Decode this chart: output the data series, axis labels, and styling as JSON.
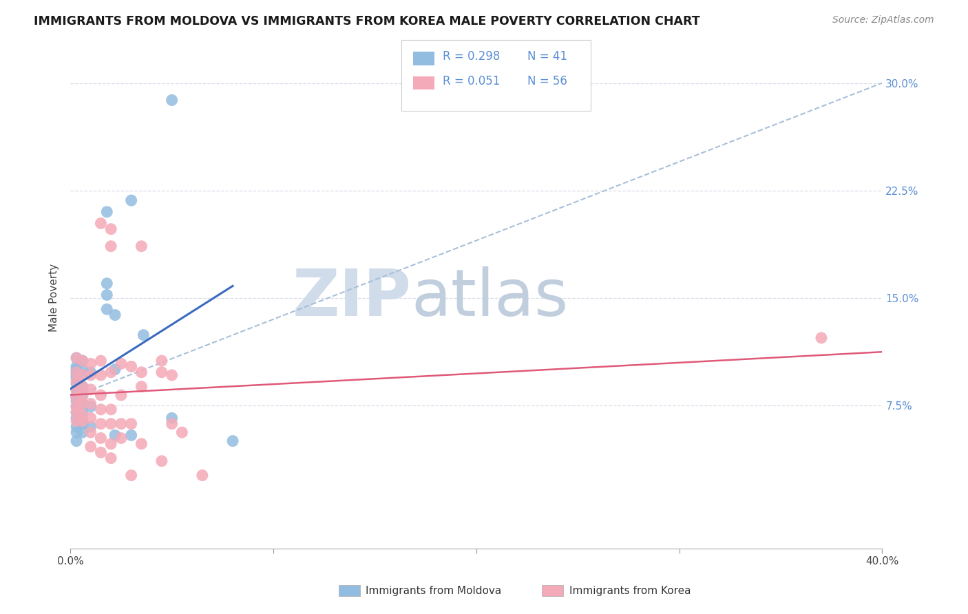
{
  "title": "IMMIGRANTS FROM MOLDOVA VS IMMIGRANTS FROM KOREA MALE POVERTY CORRELATION CHART",
  "source": "Source: ZipAtlas.com",
  "ylabel": "Male Poverty",
  "yticks": [
    "7.5%",
    "15.0%",
    "22.5%",
    "30.0%"
  ],
  "ytick_vals": [
    0.075,
    0.15,
    0.225,
    0.3
  ],
  "xlim": [
    0.0,
    0.4
  ],
  "ylim": [
    -0.025,
    0.325
  ],
  "legend_r1": "0.298",
  "legend_n1": "41",
  "legend_r2": "0.051",
  "legend_n2": "56",
  "color_moldova": "#92bce0",
  "color_korea": "#f4aab8",
  "trendline_color_moldova": "#3a6bbf",
  "trendline_color_korea": "#e05878",
  "diagonal_color": "#a8c0d8",
  "watermark_zip_color": "#d0dcea",
  "watermark_atlas_color": "#c0cede",
  "moldova_scatter": [
    [
      0.003,
      0.108
    ],
    [
      0.003,
      0.102
    ],
    [
      0.003,
      0.1
    ],
    [
      0.003,
      0.098
    ],
    [
      0.003,
      0.096
    ],
    [
      0.003,
      0.094
    ],
    [
      0.003,
      0.09
    ],
    [
      0.003,
      0.086
    ],
    [
      0.003,
      0.082
    ],
    [
      0.003,
      0.078
    ],
    [
      0.003,
      0.074
    ],
    [
      0.003,
      0.07
    ],
    [
      0.003,
      0.066
    ],
    [
      0.003,
      0.06
    ],
    [
      0.003,
      0.056
    ],
    [
      0.003,
      0.05
    ],
    [
      0.006,
      0.106
    ],
    [
      0.006,
      0.1
    ],
    [
      0.006,
      0.096
    ],
    [
      0.006,
      0.088
    ],
    [
      0.006,
      0.082
    ],
    [
      0.006,
      0.076
    ],
    [
      0.006,
      0.07
    ],
    [
      0.006,
      0.062
    ],
    [
      0.006,
      0.056
    ],
    [
      0.01,
      0.098
    ],
    [
      0.01,
      0.074
    ],
    [
      0.01,
      0.06
    ],
    [
      0.018,
      0.21
    ],
    [
      0.018,
      0.16
    ],
    [
      0.018,
      0.152
    ],
    [
      0.018,
      0.142
    ],
    [
      0.022,
      0.138
    ],
    [
      0.022,
      0.1
    ],
    [
      0.022,
      0.054
    ],
    [
      0.03,
      0.218
    ],
    [
      0.03,
      0.054
    ],
    [
      0.036,
      0.124
    ],
    [
      0.05,
      0.288
    ],
    [
      0.05,
      0.066
    ],
    [
      0.08,
      0.05
    ]
  ],
  "korea_scatter": [
    [
      0.003,
      0.108
    ],
    [
      0.003,
      0.098
    ],
    [
      0.003,
      0.092
    ],
    [
      0.003,
      0.086
    ],
    [
      0.003,
      0.08
    ],
    [
      0.003,
      0.074
    ],
    [
      0.003,
      0.07
    ],
    [
      0.003,
      0.064
    ],
    [
      0.006,
      0.106
    ],
    [
      0.006,
      0.096
    ],
    [
      0.006,
      0.088
    ],
    [
      0.006,
      0.082
    ],
    [
      0.006,
      0.076
    ],
    [
      0.006,
      0.068
    ],
    [
      0.006,
      0.064
    ],
    [
      0.01,
      0.104
    ],
    [
      0.01,
      0.096
    ],
    [
      0.01,
      0.086
    ],
    [
      0.01,
      0.076
    ],
    [
      0.01,
      0.066
    ],
    [
      0.01,
      0.056
    ],
    [
      0.01,
      0.046
    ],
    [
      0.015,
      0.202
    ],
    [
      0.015,
      0.106
    ],
    [
      0.015,
      0.096
    ],
    [
      0.015,
      0.082
    ],
    [
      0.015,
      0.072
    ],
    [
      0.015,
      0.062
    ],
    [
      0.015,
      0.052
    ],
    [
      0.015,
      0.042
    ],
    [
      0.02,
      0.198
    ],
    [
      0.02,
      0.186
    ],
    [
      0.02,
      0.098
    ],
    [
      0.02,
      0.072
    ],
    [
      0.02,
      0.062
    ],
    [
      0.02,
      0.048
    ],
    [
      0.02,
      0.038
    ],
    [
      0.025,
      0.104
    ],
    [
      0.025,
      0.082
    ],
    [
      0.025,
      0.062
    ],
    [
      0.025,
      0.052
    ],
    [
      0.03,
      0.102
    ],
    [
      0.03,
      0.062
    ],
    [
      0.03,
      0.026
    ],
    [
      0.035,
      0.186
    ],
    [
      0.035,
      0.098
    ],
    [
      0.035,
      0.088
    ],
    [
      0.035,
      0.048
    ],
    [
      0.045,
      0.106
    ],
    [
      0.045,
      0.098
    ],
    [
      0.045,
      0.036
    ],
    [
      0.05,
      0.096
    ],
    [
      0.05,
      0.062
    ],
    [
      0.055,
      0.056
    ],
    [
      0.065,
      0.026
    ],
    [
      0.37,
      0.122
    ]
  ]
}
